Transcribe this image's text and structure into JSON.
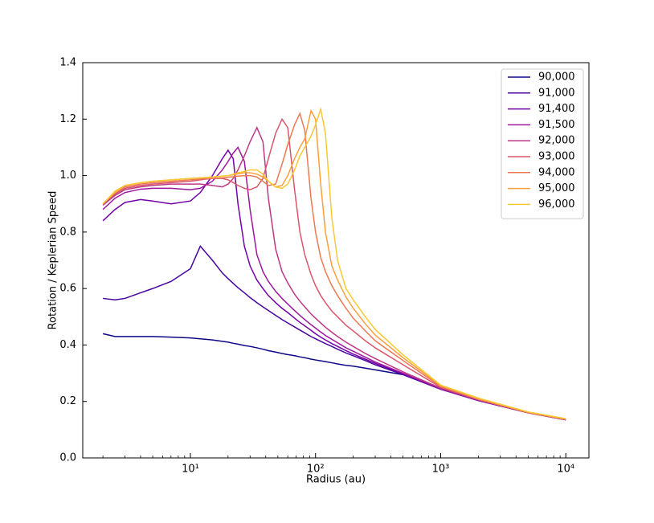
{
  "chart_data": {
    "type": "line",
    "xlabel": "Radius (au)",
    "ylabel": "Rotation / Keplerian Speed",
    "xscale": "log",
    "xlim": [
      1.38,
      15300
    ],
    "ylim": [
      0,
      1.4
    ],
    "xticks": [
      {
        "value": 10,
        "label": "10¹"
      },
      {
        "value": 100,
        "label": "10²"
      },
      {
        "value": 1000,
        "label": "10³"
      },
      {
        "value": 10000,
        "label": "10⁴"
      }
    ],
    "xticks_minor": [
      2,
      3,
      4,
      5,
      6,
      7,
      8,
      9,
      20,
      30,
      40,
      50,
      60,
      70,
      80,
      90,
      200,
      300,
      400,
      500,
      600,
      700,
      800,
      900,
      2000,
      3000,
      4000,
      5000,
      6000,
      7000,
      8000,
      9000
    ],
    "yticks": [
      {
        "value": 0,
        "label": "0.0"
      },
      0.2,
      0.4,
      0.6,
      0.8,
      {
        "value": 1,
        "label": "1.0"
      },
      1.2,
      1.4
    ],
    "legend": "upper right",
    "x": [
      2,
      2.5,
      3,
      4,
      5,
      7,
      10,
      12,
      15,
      18,
      20,
      22,
      24,
      27,
      30,
      34,
      38,
      42,
      48,
      54,
      60,
      68,
      75,
      82,
      92,
      100,
      110,
      120,
      135,
      150,
      175,
      200,
      250,
      300,
      500,
      1000,
      2000,
      5000,
      10000
    ],
    "series": [
      {
        "name": "90,000",
        "color": "#0d0887",
        "values": [
          0.44,
          0.43,
          0.43,
          0.43,
          0.43,
          0.428,
          0.425,
          0.422,
          0.418,
          0.413,
          0.41,
          0.406,
          0.403,
          0.398,
          0.395,
          0.39,
          0.385,
          0.38,
          0.375,
          0.37,
          0.366,
          0.362,
          0.358,
          0.355,
          0.35,
          0.347,
          0.344,
          0.341,
          0.337,
          0.333,
          0.328,
          0.325,
          0.318,
          0.312,
          0.295,
          0.245,
          0.205,
          0.16,
          0.135
        ]
      },
      {
        "name": "91,000",
        "color": "#46039f",
        "values": [
          0.565,
          0.56,
          0.565,
          0.585,
          0.6,
          0.625,
          0.67,
          0.75,
          0.7,
          0.655,
          0.635,
          0.618,
          0.603,
          0.585,
          0.568,
          0.55,
          0.535,
          0.522,
          0.505,
          0.49,
          0.478,
          0.464,
          0.453,
          0.443,
          0.43,
          0.422,
          0.413,
          0.405,
          0.395,
          0.385,
          0.372,
          0.362,
          0.345,
          0.33,
          0.295,
          0.243,
          0.203,
          0.16,
          0.135
        ]
      },
      {
        "name": "91,400",
        "color": "#7201a8",
        "values": [
          0.84,
          0.88,
          0.905,
          0.915,
          0.91,
          0.9,
          0.91,
          0.94,
          1.0,
          1.06,
          1.09,
          1.06,
          0.9,
          0.75,
          0.68,
          0.63,
          0.6,
          0.575,
          0.55,
          0.53,
          0.515,
          0.495,
          0.48,
          0.468,
          0.452,
          0.44,
          0.428,
          0.418,
          0.405,
          0.395,
          0.38,
          0.368,
          0.35,
          0.335,
          0.298,
          0.244,
          0.203,
          0.16,
          0.135
        ]
      },
      {
        "name": "91,500",
        "color": "#9c179e",
        "values": [
          0.88,
          0.92,
          0.94,
          0.952,
          0.955,
          0.955,
          0.95,
          0.955,
          0.98,
          1.02,
          1.05,
          1.08,
          1.1,
          1.05,
          0.88,
          0.72,
          0.66,
          0.625,
          0.59,
          0.565,
          0.545,
          0.522,
          0.505,
          0.49,
          0.472,
          0.46,
          0.446,
          0.434,
          0.42,
          0.408,
          0.39,
          0.378,
          0.357,
          0.34,
          0.3,
          0.245,
          0.204,
          0.16,
          0.135
        ]
      },
      {
        "name": "92,000",
        "color": "#bd3786",
        "values": [
          0.895,
          0.93,
          0.95,
          0.96,
          0.965,
          0.97,
          0.97,
          0.97,
          0.965,
          0.96,
          0.97,
          0.99,
          1.02,
          1.07,
          1.12,
          1.17,
          1.12,
          0.92,
          0.74,
          0.66,
          0.62,
          0.58,
          0.555,
          0.535,
          0.51,
          0.495,
          0.478,
          0.463,
          0.445,
          0.43,
          0.41,
          0.395,
          0.37,
          0.352,
          0.305,
          0.247,
          0.205,
          0.16,
          0.135
        ]
      },
      {
        "name": "93,000",
        "color": "#d8576b",
        "values": [
          0.9,
          0.935,
          0.955,
          0.965,
          0.97,
          0.975,
          0.98,
          0.985,
          0.99,
          0.99,
          0.985,
          0.975,
          0.965,
          0.955,
          0.95,
          0.96,
          0.99,
          1.06,
          1.15,
          1.2,
          1.17,
          0.95,
          0.8,
          0.72,
          0.65,
          0.61,
          0.575,
          0.55,
          0.52,
          0.5,
          0.47,
          0.45,
          0.415,
          0.39,
          0.33,
          0.25,
          0.207,
          0.16,
          0.136
        ]
      },
      {
        "name": "94,000",
        "color": "#ed7953",
        "values": [
          0.9,
          0.94,
          0.96,
          0.97,
          0.975,
          0.98,
          0.985,
          0.988,
          0.99,
          0.992,
          0.994,
          0.996,
          0.998,
          1.0,
          1.0,
          0.995,
          0.98,
          0.965,
          0.97,
          1.04,
          1.11,
          1.18,
          1.22,
          1.16,
          0.92,
          0.8,
          0.71,
          0.66,
          0.61,
          0.575,
          0.53,
          0.495,
          0.45,
          0.415,
          0.345,
          0.253,
          0.208,
          0.161,
          0.137
        ]
      },
      {
        "name": "95,000",
        "color": "#fb9f3a",
        "values": [
          0.9,
          0.94,
          0.965,
          0.975,
          0.98,
          0.985,
          0.99,
          0.992,
          0.995,
          0.998,
          1.0,
          1.003,
          1.006,
          1.01,
          1.01,
          1.005,
          0.995,
          0.98,
          0.96,
          0.965,
          1.0,
          1.06,
          1.1,
          1.13,
          1.23,
          1.2,
          0.97,
          0.8,
          0.68,
          0.63,
          0.57,
          0.53,
          0.475,
          0.435,
          0.355,
          0.256,
          0.21,
          0.162,
          0.138
        ]
      },
      {
        "name": "96,000",
        "color": "#f8c932",
        "values": [
          0.9,
          0.945,
          0.965,
          0.975,
          0.98,
          0.985,
          0.99,
          0.992,
          0.995,
          0.998,
          1.0,
          1.005,
          1.01,
          1.015,
          1.02,
          1.02,
          1.005,
          0.98,
          0.96,
          0.955,
          0.97,
          1.02,
          1.07,
          1.1,
          1.14,
          1.18,
          1.235,
          1.15,
          0.85,
          0.7,
          0.6,
          0.56,
          0.5,
          0.455,
          0.365,
          0.258,
          0.212,
          0.163,
          0.139
        ]
      }
    ]
  }
}
